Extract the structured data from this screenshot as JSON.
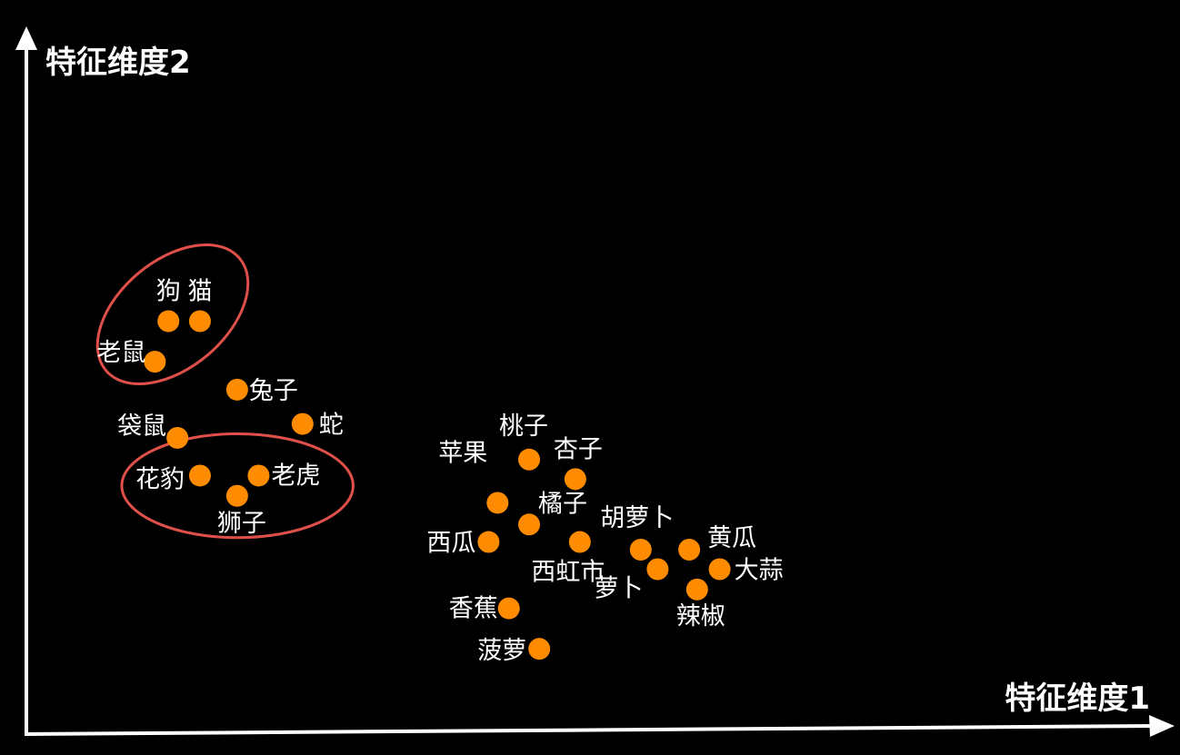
{
  "chart_data": {
    "type": "scatter",
    "xlabel": "特征维度1",
    "ylabel": "特征维度2",
    "point_color": "#ff8c00",
    "cluster_outline_color": "#e0504a",
    "axis_color": "#ffffff",
    "background_color": "#000000",
    "x_range": [
      0,
      1000
    ],
    "y_range": [
      0,
      1000
    ],
    "points": [
      {
        "label": "狗",
        "x": 126,
        "y": 591
      },
      {
        "label": "猫",
        "x": 154,
        "y": 591
      },
      {
        "label": "老鼠",
        "x": 114,
        "y": 533
      },
      {
        "label": "兔子",
        "x": 187,
        "y": 493
      },
      {
        "label": "蛇",
        "x": 245,
        "y": 444
      },
      {
        "label": "袋鼠",
        "x": 134,
        "y": 424
      },
      {
        "label": "花豹",
        "x": 154,
        "y": 370
      },
      {
        "label": "老虎",
        "x": 206,
        "y": 370
      },
      {
        "label": "狮子",
        "x": 187,
        "y": 341
      },
      {
        "label": "桃子",
        "x": 446,
        "y": 393
      },
      {
        "label": "杏子",
        "x": 487,
        "y": 365
      },
      {
        "label": "苹果",
        "x": 418,
        "y": 331
      },
      {
        "label": "橘子",
        "x": 446,
        "y": 300
      },
      {
        "label": "西瓜",
        "x": 410,
        "y": 275
      },
      {
        "label": "西虹市",
        "x": 491,
        "y": 275
      },
      {
        "label": "胡萝卜",
        "x": 545,
        "y": 264
      },
      {
        "label": "黄瓜",
        "x": 588,
        "y": 264
      },
      {
        "label": "萝卜",
        "x": 560,
        "y": 236
      },
      {
        "label": "大蒜",
        "x": 615,
        "y": 236
      },
      {
        "label": "辣椒",
        "x": 595,
        "y": 207
      },
      {
        "label": "香蕉",
        "x": 428,
        "y": 180
      },
      {
        "label": "菠萝",
        "x": 455,
        "y": 122
      }
    ],
    "clusters": [
      {
        "members": [
          "狗",
          "猫",
          "老鼠"
        ]
      },
      {
        "members": [
          "花豹",
          "老虎",
          "狮子"
        ]
      }
    ]
  }
}
